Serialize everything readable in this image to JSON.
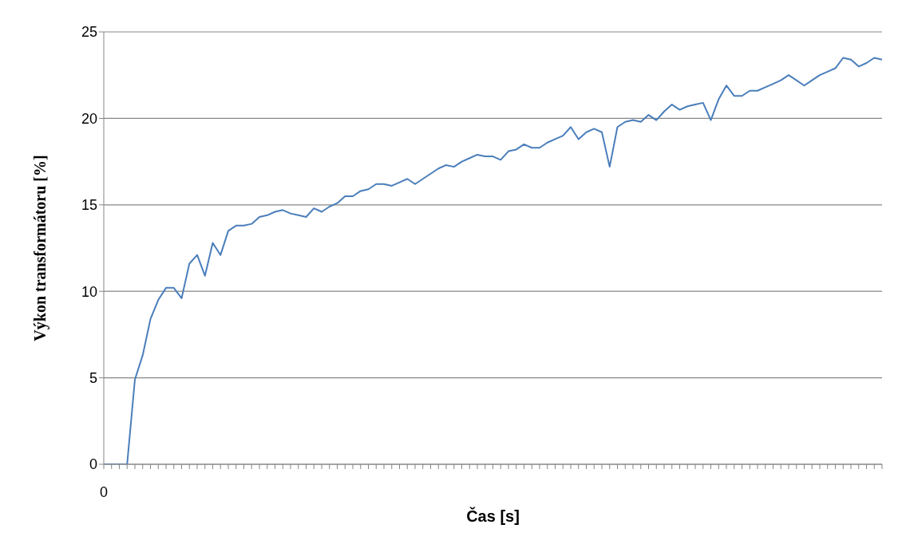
{
  "chart_data": {
    "type": "line",
    "xlabel": "Čas [s]",
    "ylabel": "Výkon transformátoru [%]",
    "categories": [
      "0",
      null,
      null,
      null,
      null,
      null,
      null,
      null,
      null,
      null,
      null,
      null,
      null,
      null,
      null,
      null,
      null,
      null,
      null,
      null,
      null,
      null,
      null,
      null,
      null,
      null,
      null,
      null,
      null,
      null,
      null,
      null,
      null,
      null,
      null,
      null,
      null,
      null,
      null,
      null,
      null,
      null,
      null,
      null,
      null,
      null,
      null,
      null,
      null,
      null,
      null,
      null,
      null,
      null,
      null,
      null,
      null,
      null,
      null,
      null,
      null,
      null,
      null,
      null,
      null,
      null,
      null,
      null,
      null,
      null,
      null,
      null,
      null,
      null,
      null,
      null,
      null,
      null,
      null,
      null,
      null,
      null,
      null,
      null,
      null,
      null,
      null,
      null,
      null,
      null,
      null,
      null,
      null,
      null,
      null,
      null,
      null,
      null,
      null,
      null,
      null
    ],
    "series": [
      {
        "color": "#4a7ebb",
        "values": [
          0,
          0,
          0,
          0,
          4.9,
          6.3,
          8.4,
          9.5,
          10.2,
          10.2,
          9.6,
          11.6,
          12.1,
          10.9,
          12.8,
          12.1,
          13.5,
          13.8,
          13.8,
          13.9,
          14.3,
          14.4,
          14.6,
          14.7,
          14.5,
          14.4,
          14.3,
          14.8,
          14.6,
          14.9,
          15.1,
          15.5,
          15.5,
          15.8,
          15.9,
          16.2,
          16.2,
          16.1,
          16.3,
          16.5,
          16.2,
          16.5,
          16.8,
          17.1,
          17.3,
          17.2,
          17.5,
          17.7,
          17.9,
          17.8,
          17.8,
          17.6,
          18.1,
          18.2,
          18.5,
          18.3,
          18.3,
          18.6,
          18.8,
          19.0,
          19.5,
          18.8,
          19.2,
          19.4,
          19.2,
          17.2,
          19.5,
          19.8,
          19.9,
          19.8,
          20.2,
          19.9,
          20.4,
          20.8,
          20.5,
          20.7,
          20.8,
          20.9,
          19.9,
          21.1,
          21.9,
          21.3,
          21.3,
          21.6,
          21.6,
          21.8,
          22.0,
          22.2,
          22.5,
          22.2,
          21.9,
          22.2,
          22.5,
          22.7,
          22.9,
          23.5,
          23.4,
          23.0,
          23.2,
          23.5,
          23.4
        ]
      }
    ],
    "ylim": [
      0,
      25
    ],
    "yticks": [
      0,
      5,
      10,
      15,
      20,
      25
    ],
    "grid": "y",
    "marker": "none",
    "line_style": "solid"
  }
}
